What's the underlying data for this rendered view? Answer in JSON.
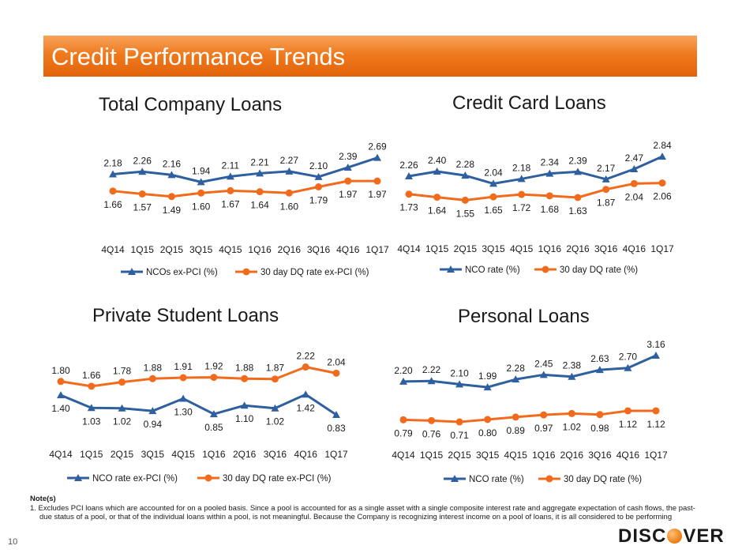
{
  "header": {
    "title": "Credit Performance Trends"
  },
  "colors": {
    "blue": "#2e5f9e",
    "orange": "#f26b1d"
  },
  "notes": {
    "heading": "Note(s)",
    "items": [
      "1.   Excludes PCI loans which are accounted for on a pooled basis. Since a pool is accounted for as a single asset with a single composite interest rate and aggregate expectation of cash flows, the past-due status of a pool, or that of the individual loans within a pool, is not meaningful. Because the Company is recognizing interest income on a pool of loans, it is all considered to be performing"
    ]
  },
  "page_number": "10",
  "logo": {
    "before": "DISC",
    "after": "VER"
  },
  "chart_data": [
    {
      "type": "line",
      "title": "Total Company Loans",
      "categories": [
        "4Q14",
        "1Q15",
        "2Q15",
        "3Q15",
        "4Q15",
        "1Q16",
        "2Q16",
        "3Q16",
        "4Q16",
        "1Q17"
      ],
      "series": [
        {
          "name": "NCOs ex-PCI (%)",
          "marker": "triangle",
          "values": [
            2.18,
            2.26,
            2.16,
            1.94,
            2.11,
            2.21,
            2.27,
            2.1,
            2.39,
            2.69
          ]
        },
        {
          "name": "30 day DQ rate ex-PCI (%)",
          "marker": "circle",
          "values": [
            1.66,
            1.57,
            1.49,
            1.6,
            1.67,
            1.64,
            1.6,
            1.79,
            1.97,
            1.97
          ]
        }
      ],
      "legend": "bottom"
    },
    {
      "type": "line",
      "title": "Credit Card Loans",
      "categories": [
        "4Q14",
        "1Q15",
        "2Q15",
        "3Q15",
        "4Q15",
        "1Q16",
        "2Q16",
        "3Q16",
        "4Q16",
        "1Q17"
      ],
      "series": [
        {
          "name": "NCO rate (%)",
          "marker": "triangle",
          "values": [
            2.26,
            2.4,
            2.28,
            2.04,
            2.18,
            2.34,
            2.39,
            2.17,
            2.47,
            2.84
          ]
        },
        {
          "name": "30 day DQ rate (%)",
          "marker": "circle",
          "values": [
            1.73,
            1.64,
            1.55,
            1.65,
            1.72,
            1.68,
            1.63,
            1.87,
            2.04,
            2.06
          ]
        }
      ],
      "legend": "bottom"
    },
    {
      "type": "line",
      "title": "Private Student Loans",
      "categories": [
        "4Q14",
        "1Q15",
        "2Q15",
        "3Q15",
        "4Q15",
        "1Q16",
        "2Q16",
        "3Q16",
        "4Q16",
        "1Q17"
      ],
      "series": [
        {
          "name": "NCO rate ex-PCI (%)",
          "marker": "triangle",
          "values": [
            1.4,
            1.03,
            1.02,
            0.94,
            1.3,
            0.85,
            1.1,
            1.02,
            1.42,
            0.83
          ]
        },
        {
          "name": "30 day DQ rate ex-PCI (%)",
          "marker": "circle",
          "values": [
            1.8,
            1.66,
            1.78,
            1.88,
            1.91,
            1.92,
            1.88,
            1.87,
            2.22,
            2.04
          ]
        }
      ],
      "legend": "bottom"
    },
    {
      "type": "line",
      "title": "Personal Loans",
      "categories": [
        "4Q14",
        "1Q15",
        "2Q15",
        "3Q15",
        "4Q15",
        "1Q16",
        "2Q16",
        "3Q16",
        "4Q16",
        "1Q17"
      ],
      "series": [
        {
          "name": "NCO rate (%)",
          "marker": "triangle",
          "values": [
            2.2,
            2.22,
            2.1,
            1.99,
            2.28,
            2.45,
            2.38,
            2.63,
            2.7,
            3.16
          ]
        },
        {
          "name": "30 day DQ rate (%)",
          "marker": "circle",
          "values": [
            0.79,
            0.76,
            0.71,
            0.8,
            0.89,
            0.97,
            1.02,
            0.98,
            1.12,
            1.12
          ]
        }
      ],
      "legend": "bottom"
    }
  ]
}
